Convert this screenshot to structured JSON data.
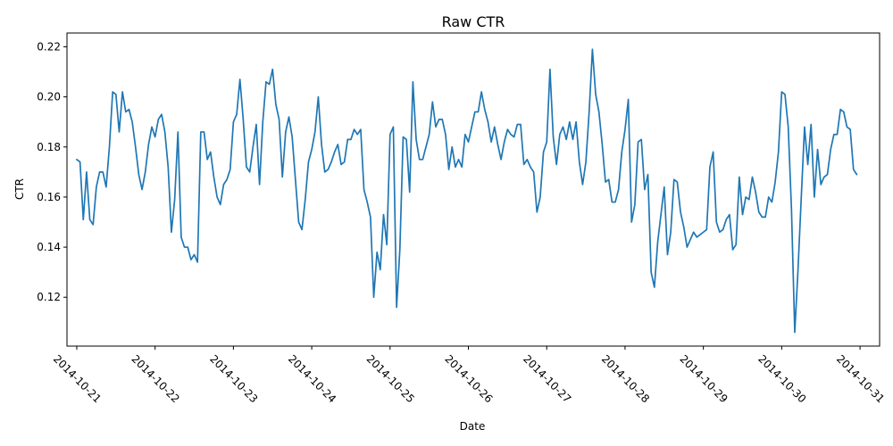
{
  "chart_data": {
    "type": "line",
    "title": "Raw CTR",
    "xlabel": "Date",
    "ylabel": "CTR",
    "x_ticks": [
      "2014-10-21",
      "2014-10-22",
      "2014-10-23",
      "2014-10-24",
      "2014-10-25",
      "2014-10-26",
      "2014-10-27",
      "2014-10-28",
      "2014-10-29",
      "2014-10-30",
      "2014-10-31"
    ],
    "y_ticks": [
      0.12,
      0.14,
      0.16,
      0.18,
      0.2,
      0.22
    ],
    "y_tick_labels": [
      "0.12",
      "0.14",
      "0.16",
      "0.18",
      "0.20",
      "0.22"
    ],
    "xlim": [
      "2014-10-20T21:00",
      "2014-10-31T06:00"
    ],
    "ylim": [
      0.1005,
      0.2255
    ],
    "grid": false,
    "color": "#1f77b4",
    "series": [
      {
        "x_start": "2014-10-21T00:00",
        "x_step_hours": 1,
        "values": [
          0.175,
          0.174,
          0.151,
          0.17,
          0.151,
          0.149,
          0.164,
          0.17,
          0.17,
          0.164,
          0.18,
          0.202,
          0.201,
          0.186,
          0.202,
          0.194,
          0.195,
          0.19,
          0.18,
          0.169,
          0.163,
          0.17,
          0.181,
          0.188,
          0.184,
          0.191,
          0.193,
          0.186,
          0.172,
          0.146,
          0.159,
          0.186,
          0.144,
          0.14,
          0.14,
          0.135,
          0.137,
          0.134,
          0.186,
          0.186,
          0.175,
          0.178,
          0.168,
          0.16,
          0.157,
          0.165,
          0.167,
          0.171,
          0.19,
          0.193,
          0.207,
          0.191,
          0.172,
          0.17,
          0.18,
          0.189,
          0.165,
          0.19,
          0.206,
          0.205,
          0.211,
          0.197,
          0.191,
          0.168,
          0.186,
          0.192,
          0.184,
          0.167,
          0.15,
          0.147,
          0.159,
          0.174,
          0.179,
          0.186,
          0.2,
          0.181,
          0.17,
          0.171,
          0.174,
          0.178,
          0.181,
          0.173,
          0.174,
          0.183,
          0.183,
          0.187,
          0.185,
          0.187,
          0.163,
          0.158,
          0.152,
          0.12,
          0.138,
          0.131,
          0.153,
          0.141,
          0.185,
          0.188,
          0.116,
          0.139,
          0.184,
          0.183,
          0.162,
          0.206,
          0.183,
          0.175,
          0.175,
          0.18,
          0.185,
          0.198,
          0.188,
          0.191,
          0.191,
          0.185,
          0.171,
          0.18,
          0.172,
          0.175,
          0.172,
          0.185,
          0.182,
          0.188,
          0.194,
          0.194,
          0.202,
          0.195,
          0.19,
          0.182,
          0.188,
          0.181,
          0.175,
          0.182,
          0.187,
          0.185,
          0.184,
          0.189,
          0.189,
          0.173,
          0.175,
          0.172,
          0.17,
          0.154,
          0.16,
          0.178,
          0.182,
          0.211,
          0.184,
          0.173,
          0.185,
          0.188,
          0.183,
          0.19,
          0.183,
          0.19,
          0.174,
          0.165,
          0.174,
          0.194,
          0.219,
          0.201,
          0.194,
          0.181,
          0.166,
          0.167,
          0.158,
          0.158,
          0.163,
          0.178,
          0.187,
          0.199,
          0.15,
          0.157,
          0.182,
          0.183,
          0.163,
          0.169,
          0.13,
          0.124,
          0.142,
          0.153,
          0.164,
          0.137,
          0.146,
          0.167,
          0.166,
          0.154,
          0.148,
          0.14,
          0.143,
          0.146,
          0.144,
          0.145,
          0.146,
          0.147,
          0.172,
          0.178,
          0.15,
          0.146,
          0.147,
          0.151,
          0.153,
          0.139,
          0.141,
          0.168,
          0.153,
          0.16,
          0.159,
          0.168,
          0.162,
          0.154,
          0.152,
          0.152,
          0.16,
          0.158,
          0.166,
          0.178,
          0.202,
          0.201,
          0.188,
          0.155,
          0.106,
          0.131,
          0.16,
          0.188,
          0.173,
          0.189,
          0.16,
          0.179,
          0.165,
          0.168,
          0.169,
          0.179,
          0.185,
          0.185,
          0.195,
          0.194,
          0.188,
          0.187,
          0.171,
          0.169
        ]
      }
    ]
  }
}
